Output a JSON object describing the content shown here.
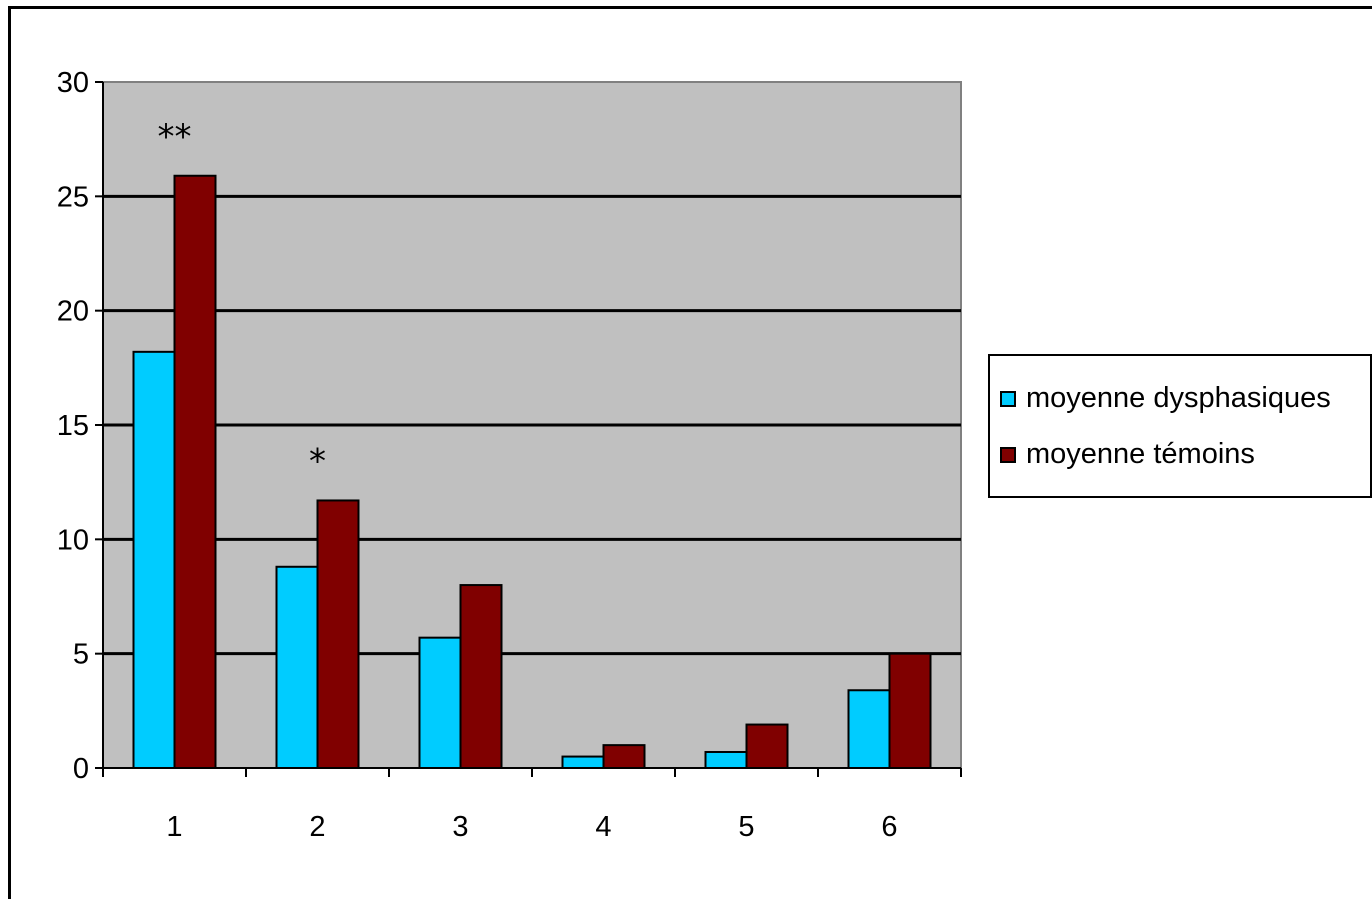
{
  "chart_data": {
    "type": "bar",
    "categories": [
      "1",
      "2",
      "3",
      "4",
      "5",
      "6"
    ],
    "series": [
      {
        "name": "moyenne dysphasiques",
        "color": "#00CCFF",
        "values": [
          18.2,
          8.8,
          5.7,
          0.5,
          0.7,
          3.4
        ]
      },
      {
        "name": "moyenne témoins",
        "color": "#800000",
        "values": [
          25.9,
          11.7,
          8.0,
          1.0,
          1.9,
          5.0
        ]
      }
    ],
    "title": "",
    "xlabel": "",
    "ylabel": "",
    "ylim": [
      0,
      30
    ],
    "yticks": [
      0,
      5,
      10,
      15,
      20,
      25,
      30
    ],
    "grid": true,
    "plot_background": "#C0C0C0",
    "legend_position": "right",
    "annotations": [
      {
        "category": "1",
        "text": "**"
      },
      {
        "category": "2",
        "text": "*"
      }
    ]
  }
}
